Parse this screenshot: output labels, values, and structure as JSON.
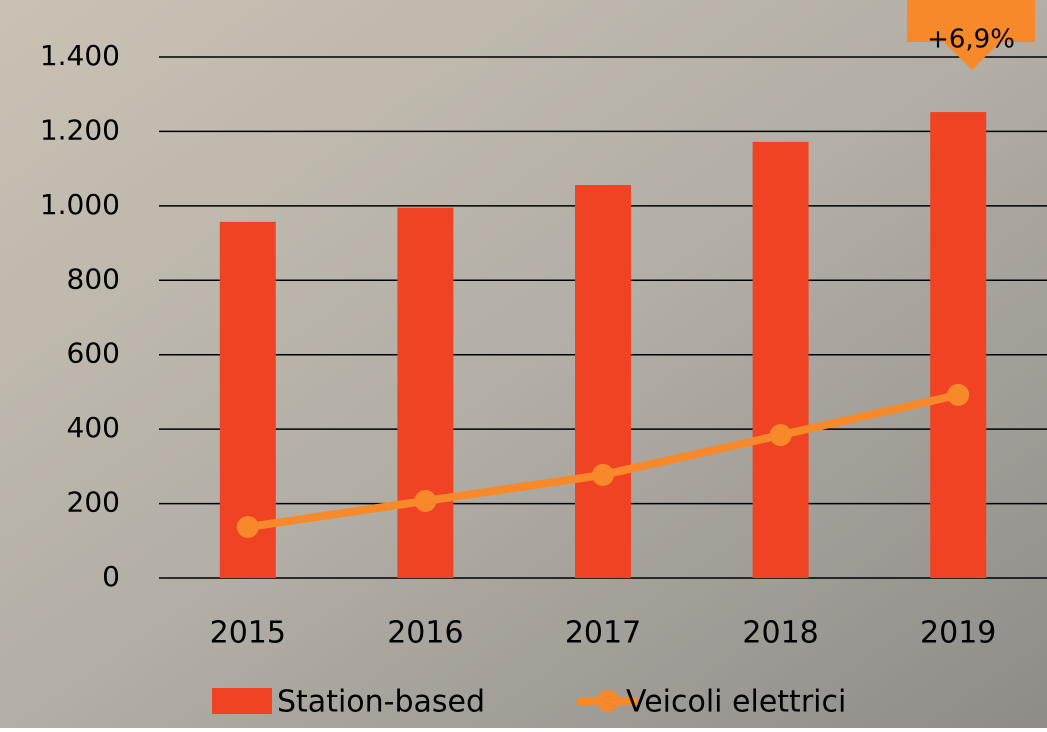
{
  "chart_data": {
    "type": "bar-line",
    "categories": [
      "2015",
      "2016",
      "2017",
      "2018",
      "2019"
    ],
    "series": [
      {
        "name": "Station-based",
        "type": "bar",
        "color": "#f04323",
        "values": [
          957,
          995,
          1056,
          1172,
          1252
        ]
      },
      {
        "name": "Veicoli elettrici",
        "type": "line",
        "color": "#f7892a",
        "values": [
          137,
          207,
          277,
          384,
          492
        ]
      }
    ],
    "ylim": [
      0,
      1400
    ],
    "yticks": [
      0,
      200,
      400,
      600,
      800,
      {
        "value": 1000,
        "label": "1.000"
      },
      {
        "value": 1200,
        "label": "1.200"
      },
      {
        "value": 1400,
        "label": "1.400"
      }
    ],
    "grid": true,
    "annotation": "+6,9%",
    "legend": "bottom"
  }
}
